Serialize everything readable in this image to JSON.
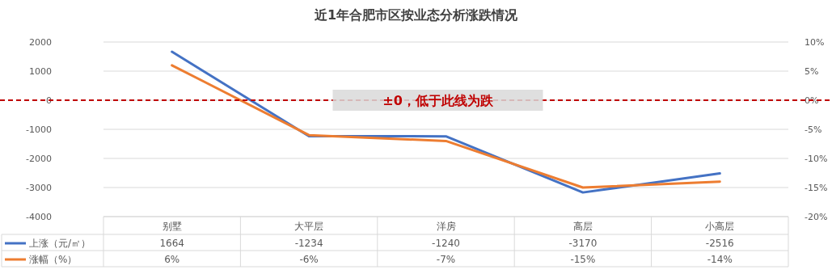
{
  "chart_data": {
    "type": "line",
    "title": "近1年合肥市区按业态分析涨跌情况",
    "categories": [
      "别墅",
      "大平层",
      "洋房",
      "高层",
      "小高层"
    ],
    "series": [
      {
        "name": "上涨（元/㎡）",
        "color": "#4472c4",
        "values": [
          1664,
          -1234,
          -1240,
          -3170,
          -2516
        ],
        "value_labels": [
          "1664",
          "-1234",
          "-1240",
          "-3170",
          "-2516"
        ]
      },
      {
        "name": "涨幅（%）",
        "color": "#ed7d31",
        "axis": "y2",
        "values": [
          6,
          -6,
          -7,
          -15,
          -14
        ],
        "value_labels": [
          "6%",
          "-6%",
          "-7%",
          "-15%",
          "-14%"
        ]
      }
    ],
    "ylim": [
      -4000,
      2000
    ],
    "yticks": [
      -4000,
      -3000,
      -2000,
      -1000,
      0,
      1000,
      2000
    ],
    "y2lim": [
      -20,
      10
    ],
    "y2ticks": [
      {
        "value": -20,
        "label": "-20%"
      },
      {
        "value": -15,
        "label": "-15%"
      },
      {
        "value": -10,
        "label": "-10%"
      },
      {
        "value": -5,
        "label": "-5%"
      },
      {
        "value": 0,
        "label": "0%"
      },
      {
        "value": 5,
        "label": "5%"
      },
      {
        "value": 10,
        "label": "10%"
      }
    ],
    "grid": "y",
    "legend": "bottom left",
    "marker": "none",
    "line_style": "solid",
    "ref_lines": [
      {
        "axis": "y",
        "value": 0,
        "label": "±0，低于此线为跌",
        "color": "#c00000",
        "line_style": "dashed"
      }
    ]
  }
}
